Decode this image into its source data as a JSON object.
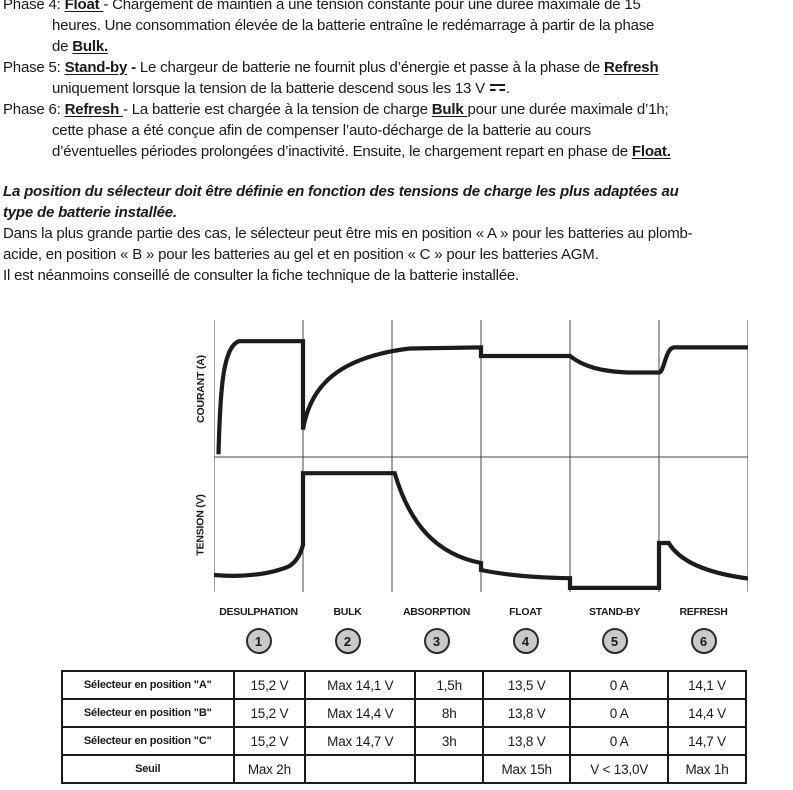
{
  "doc": {
    "lines": [
      {
        "indent": 0,
        "segments": [
          {
            "t": "Phase 4: "
          },
          {
            "t": "Float ",
            "b": 1,
            "u": 1
          },
          {
            "t": " - Chargement de maintien à une tension constante pour une durée maximale de 15"
          }
        ]
      },
      {
        "indent": 1,
        "segments": [
          {
            "t": "heures. Une consommation élevée de la batterie entraîne le redémarrage à partir de la phase"
          }
        ]
      },
      {
        "indent": 1,
        "segments": [
          {
            "t": "de "
          },
          {
            "t": "Bulk.",
            "b": 1,
            "u": 1
          }
        ]
      },
      {
        "indent": 0,
        "segments": [
          {
            "t": "Phase 5: "
          },
          {
            "t": "Stand-by",
            "b": 1,
            "u": 1
          },
          {
            "t": " - ",
            "b": 1
          },
          {
            "t": "Le chargeur de batterie ne fournit plus d’énergie et passe à la phase de  "
          },
          {
            "t": "Refresh",
            "b": 1,
            "u": 1
          }
        ]
      },
      {
        "indent": 1,
        "segments": [
          {
            "t": "uniquement lorsque la tension de la batterie descend sous les 13 V "
          },
          {
            "sym": "dc"
          },
          {
            "t": "."
          }
        ]
      },
      {
        "indent": 0,
        "segments": [
          {
            "t": "Phase 6: "
          },
          {
            "t": "Refresh ",
            "b": 1,
            "u": 1
          },
          {
            "t": " - La batterie est chargée à la tension de charge "
          },
          {
            "t": "Bulk ",
            "b": 1,
            "u": 1
          },
          {
            "t": " pour une durée maximale d’1h;"
          }
        ]
      },
      {
        "indent": 1,
        "segments": [
          {
            "t": "cette phase a été conçue afin de compenser l’auto-décharge de la batterie au cours"
          }
        ]
      },
      {
        "indent": 1,
        "segments": [
          {
            "t": "d’éventuelles périodes prolongées d’inactivité.  Ensuite, le chargement repart en phase de "
          },
          {
            "t": "Float.",
            "b": 1,
            "u": 1
          }
        ]
      }
    ],
    "selector_lines": [
      {
        "indent": 0,
        "segments": [
          {
            "t": "La position du sélecteur doit être définie en fonction des tensions de charge les plus adaptées au",
            "b": 1,
            "i": 1
          }
        ]
      },
      {
        "indent": 0,
        "segments": [
          {
            "t": "type de batterie installée.",
            "b": 1,
            "i": 1
          }
        ]
      },
      {
        "indent": 0,
        "segments": [
          {
            "t": "Dans la plus grande partie des cas, le sélecteur peut être mis en position « A » pour les batteries au plomb-"
          }
        ]
      },
      {
        "indent": 0,
        "segments": [
          {
            "t": "acide, en position « B » pour les batteries au gel et en position « C » pour les batteries AGM."
          }
        ]
      },
      {
        "indent": 0,
        "segments": [
          {
            "t": "Il est néanmoins conseillé de consulter la fiche technique de la batterie installée."
          }
        ]
      }
    ]
  },
  "chart_data": {
    "type": "line",
    "title": "",
    "categories": [
      "DESULPHATION",
      "BULK",
      "ABSORPTION",
      "FLOAT",
      "STAND-BY",
      "REFRESH"
    ],
    "phase_numbers": [
      "1",
      "2",
      "3",
      "4",
      "5",
      "6"
    ],
    "x_unit": "phase (0–6, une division par phase)",
    "y_unit": "normalisé 0–1 par panneau",
    "grid": "7 lignes verticales aux limites de phases, 1 ligne horizontale médiane",
    "legend_position": "none",
    "panels": [
      {
        "ylabel": "COURANT (A)",
        "series_name": "courant",
        "path": [
          [
            "M",
            0.05,
            0.02
          ],
          [
            "C",
            0.07,
            0.5,
            0.1,
            0.8,
            0.28,
            0.845
          ],
          [
            "L",
            1.0,
            0.845
          ],
          [
            "L",
            1.0,
            0.2
          ],
          [
            "C",
            1.08,
            0.52,
            1.4,
            0.73,
            2.2,
            0.792
          ],
          [
            "L",
            3.0,
            0.8
          ],
          [
            "L",
            3.0,
            0.737
          ],
          [
            "L",
            4.0,
            0.737
          ],
          [
            "C",
            4.15,
            0.66,
            4.35,
            0.625,
            4.65,
            0.617
          ],
          [
            "L",
            5.0,
            0.617
          ],
          [
            "C",
            5.06,
            0.617,
            5.07,
            0.795,
            5.17,
            0.8
          ],
          [
            "L",
            6.0,
            0.8
          ]
        ]
      },
      {
        "ylabel": "TENSION (V)",
        "series_name": "tension",
        "path": [
          [
            "M",
            0.0,
            0.126
          ],
          [
            "C",
            0.3,
            0.108,
            0.62,
            0.128,
            0.84,
            0.19
          ],
          [
            "C",
            0.93,
            0.225,
            0.97,
            0.28,
            1.0,
            0.348
          ],
          [
            "L",
            1.0,
            0.88
          ],
          [
            "L",
            2.03,
            0.88
          ],
          [
            "C",
            2.2,
            0.5,
            2.5,
            0.28,
            3.0,
            0.215
          ],
          [
            "L",
            3.0,
            0.163
          ],
          [
            "C",
            3.3,
            0.122,
            3.62,
            0.106,
            4.0,
            0.102
          ],
          [
            "L",
            4.0,
            0.03
          ],
          [
            "L",
            5.0,
            0.03
          ],
          [
            "L",
            5.0,
            0.363
          ],
          [
            "L",
            5.11,
            0.363
          ],
          [
            "C",
            5.22,
            0.24,
            5.48,
            0.145,
            6.0,
            0.1
          ]
        ]
      }
    ],
    "colors": {
      "curve": "#1c1c1c",
      "grid": "#4a4a4a",
      "circle_fill": "#c9c9c9",
      "circle_border": "#2b2b2b"
    }
  },
  "table": {
    "rows": [
      {
        "label": "Sélecteur en position \"A\"",
        "values": [
          "15,2 V",
          "Max 14,1 V",
          "1,5h",
          "13,5 V",
          "0 A",
          "14,1 V"
        ]
      },
      {
        "label": "Sélecteur en position \"B\"",
        "values": [
          "15,2 V",
          "Max 14,4 V",
          "8h",
          "13,8 V",
          "0 A",
          "14,4 V"
        ]
      },
      {
        "label": "Sélecteur en position \"C\"",
        "values": [
          "15,2 V",
          "Max 14,7 V",
          "3h",
          "13,8 V",
          "0 A",
          "14,7 V"
        ]
      },
      {
        "label": "Seuil",
        "values": [
          "Max 2h",
          "",
          "",
          "Max 15h",
          "V < 13,0V",
          "Max 1h"
        ]
      }
    ]
  }
}
